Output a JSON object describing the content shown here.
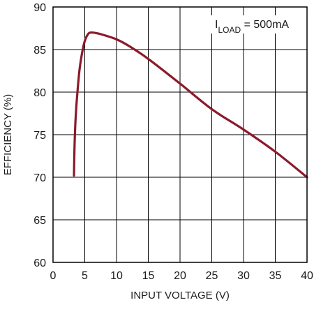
{
  "chart_data": {
    "type": "line",
    "xlabel": "INPUT VOLTAGE (V)",
    "ylabel": "EFFICIENCY (%)",
    "annotation": {
      "base": "I",
      "subscript": "LOAD",
      "rest": " = 500mA"
    },
    "xlim": [
      0,
      40
    ],
    "ylim": [
      60,
      90
    ],
    "xticks": [
      0,
      5,
      10,
      15,
      20,
      25,
      30,
      35,
      40
    ],
    "yticks": [
      60,
      65,
      70,
      75,
      80,
      85,
      90
    ],
    "grid": true,
    "series": [
      {
        "color": "#8b1a2b",
        "x": [
          3.3,
          3.4,
          3.6,
          3.9,
          4.2,
          4.6,
          5.0,
          5.5,
          6.0,
          7.0,
          8.0,
          10.0,
          12.0,
          15.0,
          20.0,
          25.0,
          30.0,
          35.0,
          40.0
        ],
        "y": [
          70.2,
          74.0,
          77.5,
          80.5,
          82.8,
          84.7,
          86.0,
          86.8,
          87.0,
          86.9,
          86.7,
          86.2,
          85.4,
          83.9,
          81.0,
          78.0,
          75.6,
          73.0,
          70.0
        ]
      }
    ]
  }
}
